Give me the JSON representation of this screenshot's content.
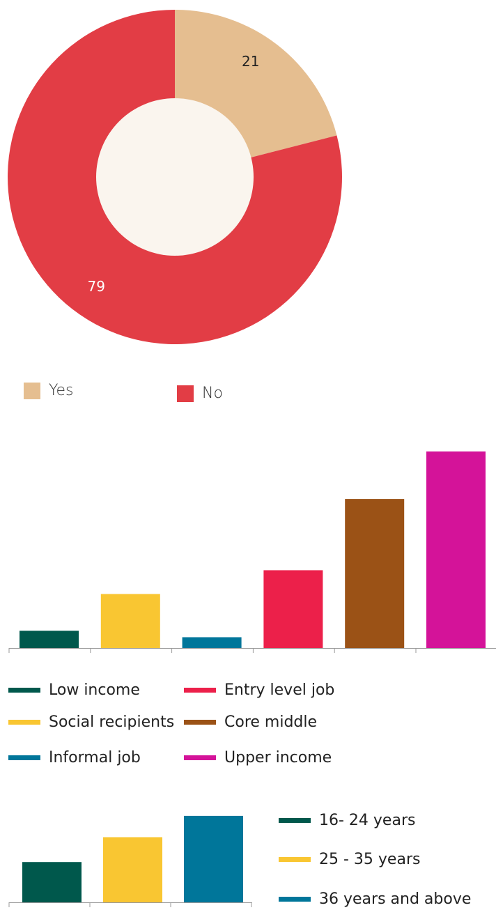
{
  "chart_data": [
    {
      "type": "pie",
      "donut": true,
      "categories": [
        "Yes",
        "No"
      ],
      "values": [
        21,
        79
      ],
      "colors": [
        "#E5BE90",
        "#E23D45"
      ],
      "center_color": "#FAF5EE",
      "title": "",
      "legend": "bottom"
    },
    {
      "type": "bar",
      "categories": [
        "Low income",
        "Social recipients",
        "Informal job",
        "Entry level job",
        "Core middle",
        "Upper income"
      ],
      "values": [
        8,
        25,
        5,
        36,
        69,
        91
      ],
      "colors": [
        "#00584C",
        "#F9C632",
        "#00769A",
        "#EC204A",
        "#9B5216",
        "#D41399"
      ],
      "ylim": [
        0,
        100
      ],
      "title": "",
      "xlabel": "",
      "ylabel": "",
      "grid": false,
      "legend": "bottom"
    },
    {
      "type": "bar",
      "categories": [
        "16- 24 years",
        "25 - 35 years",
        "36 years and above"
      ],
      "values": [
        34,
        55,
        73
      ],
      "colors": [
        "#00584C",
        "#F9C632",
        "#00769A"
      ],
      "ylim": [
        0,
        100
      ],
      "title": "",
      "xlabel": "",
      "ylabel": "",
      "grid": false,
      "legend": "right"
    }
  ]
}
